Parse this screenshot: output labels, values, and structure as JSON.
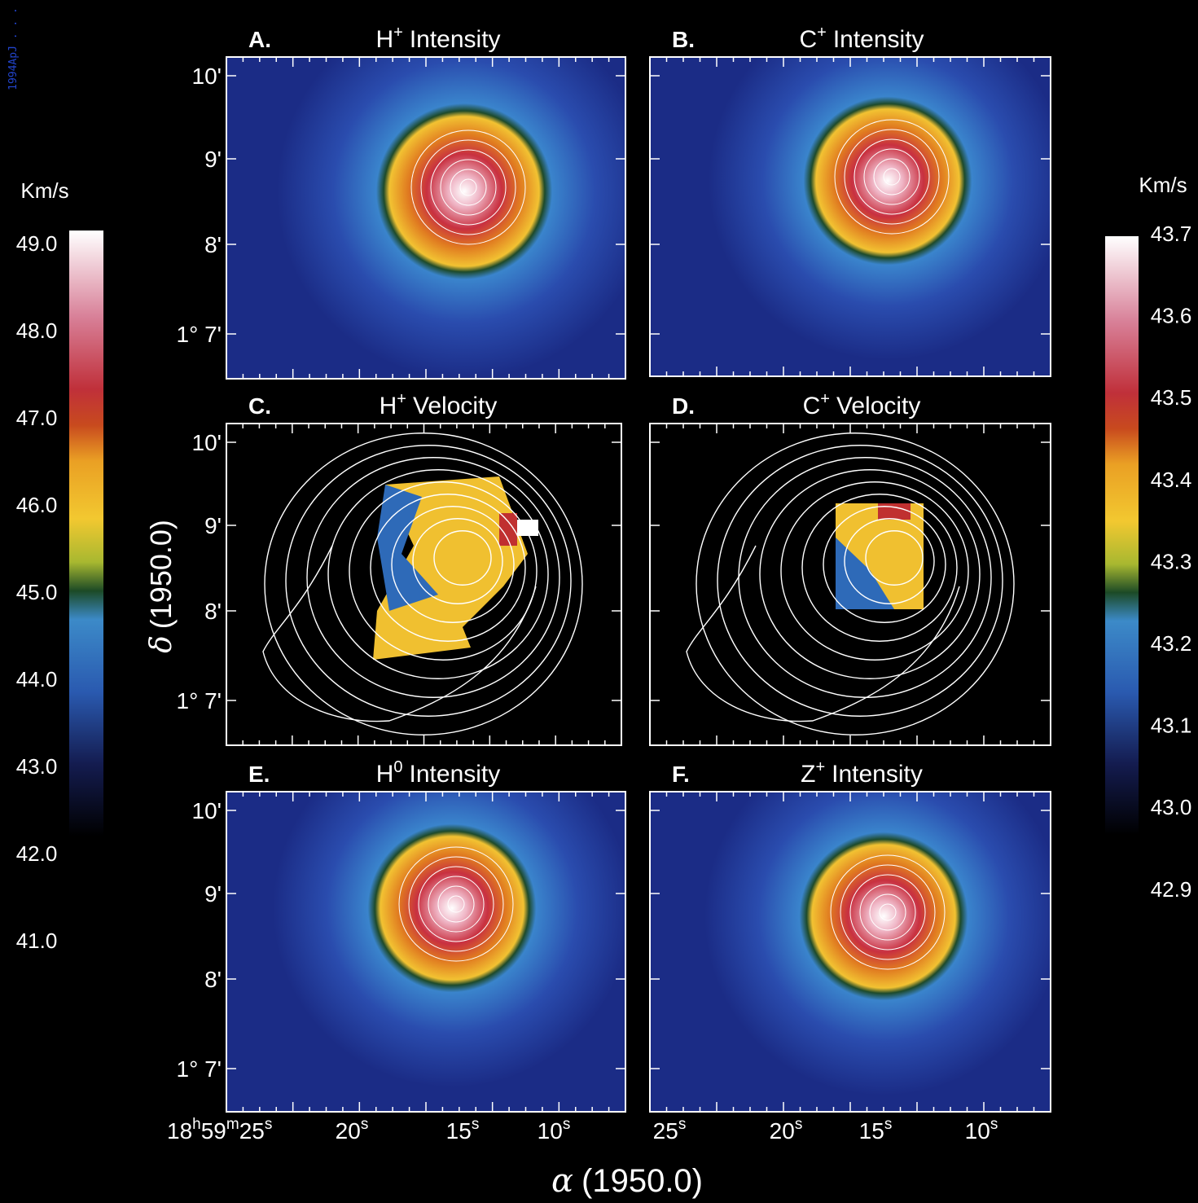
{
  "corner_note": "1994ApJ . . .",
  "panels": [
    {
      "letter": "A.",
      "species": "H",
      "charge": "+",
      "quantity": "Intensity"
    },
    {
      "letter": "B.",
      "species": "C",
      "charge": "+",
      "quantity": "Intensity"
    },
    {
      "letter": "C.",
      "species": "H",
      "charge": "+",
      "quantity": "Velocity"
    },
    {
      "letter": "D.",
      "species": "C",
      "charge": "+",
      "quantity": "Velocity"
    },
    {
      "letter": "E.",
      "species": "H",
      "charge": "0",
      "quantity": "Intensity"
    },
    {
      "letter": "F.",
      "species": "Z",
      "charge": "+",
      "quantity": "Intensity"
    }
  ],
  "y_tick_labels": [
    "10'",
    "9'",
    "8'",
    "1° 7'"
  ],
  "y_axis_label": {
    "symbol": "δ",
    "epoch": "(1950.0)"
  },
  "x_axis_label": {
    "symbol": "α",
    "epoch": "(1950.0)"
  },
  "x_tick_labels_left": [
    [
      [
        "18",
        "h"
      ],
      [
        "59",
        "m"
      ],
      [
        "25",
        "s"
      ]
    ],
    [
      [
        "20",
        "s"
      ]
    ],
    [
      [
        "15",
        "s"
      ]
    ],
    [
      [
        "10",
        "s"
      ]
    ]
  ],
  "x_tick_labels_right": [
    [
      [
        "25",
        "s"
      ]
    ],
    [
      [
        "20",
        "s"
      ]
    ],
    [
      [
        "15",
        "s"
      ]
    ],
    [
      [
        "10",
        "s"
      ]
    ]
  ],
  "left_colorbar": {
    "unit": "Km/s",
    "labels": [
      "49.0",
      "48.0",
      "47.0",
      "46.0",
      "45.0",
      "44.0",
      "43.0",
      "42.0",
      "41.0"
    ]
  },
  "right_colorbar": {
    "unit": "Km/s",
    "labels": [
      "43.7",
      "43.6",
      "43.5",
      "43.4",
      "43.3",
      "43.2",
      "43.1",
      "43.0",
      "42.9"
    ]
  }
}
